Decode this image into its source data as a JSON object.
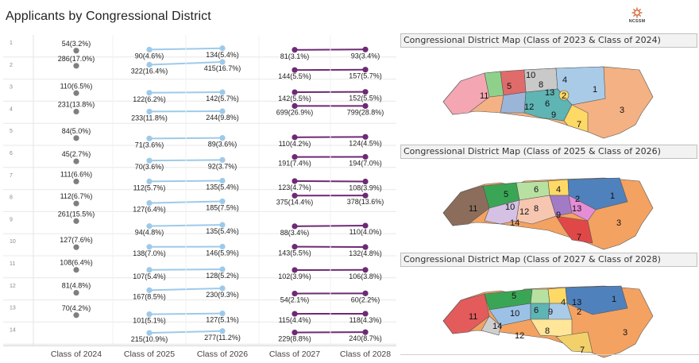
{
  "header": {
    "title": "Applicants by Congressional District",
    "logo_text": "NCSSM"
  },
  "chart_data": {
    "type": "line",
    "categories": [
      "Class of 2024",
      "Class of 2025",
      "Class of 2026",
      "Class of 2027",
      "Class of 2028"
    ],
    "rows": [
      "1",
      "2",
      "3",
      "4",
      "5",
      "6",
      "7",
      "8",
      "9",
      "10",
      "11",
      "12",
      "13",
      "14"
    ],
    "colors": {
      "c2024": "#7f7f7f",
      "c2526": "#9ecae9",
      "c2728": "#6e2a74"
    },
    "c2024": [
      {
        "v": 54,
        "label": "54(3.2%)"
      },
      {
        "v": 286,
        "label": "286(17.0%)"
      },
      {
        "v": 110,
        "label": "110(6.5%)"
      },
      {
        "v": 231,
        "label": "231(13.8%)"
      },
      {
        "v": 84,
        "label": "84(5.0%)"
      },
      {
        "v": 45,
        "label": "45(2.7%)"
      },
      {
        "v": 111,
        "label": "111(6.6%)"
      },
      {
        "v": 112,
        "label": "112(6.7%)"
      },
      {
        "v": 261,
        "label": "261(15.5%)"
      },
      {
        "v": 127,
        "label": "127(7.6%)"
      },
      {
        "v": 108,
        "label": "108(6.4%)"
      },
      {
        "v": 81,
        "label": "81(4.8%)"
      },
      {
        "v": 70,
        "label": "70(4.2%)"
      },
      {
        "v": null,
        "label": ""
      }
    ],
    "c2025": [
      {
        "v": 90,
        "label": "90(4.6%)"
      },
      {
        "v": 322,
        "label": "322(16.4%)"
      },
      {
        "v": 122,
        "label": "122(6.2%)"
      },
      {
        "v": 233,
        "label": "233(11.8%)"
      },
      {
        "v": 71,
        "label": "71(3.6%)"
      },
      {
        "v": 70,
        "label": "70(3.6%)"
      },
      {
        "v": 112,
        "label": "112(5.7%)"
      },
      {
        "v": 127,
        "label": "127(6.4%)"
      },
      {
        "v": 94,
        "label": "94(4.8%)"
      },
      {
        "v": 138,
        "label": "138(7.0%)"
      },
      {
        "v": 107,
        "label": "107(5.4%)"
      },
      {
        "v": 167,
        "label": "167(8.5%)"
      },
      {
        "v": 101,
        "label": "101(5.1%)"
      },
      {
        "v": 215,
        "label": "215(10.9%)"
      }
    ],
    "c2026": [
      {
        "v": 134,
        "label": "134(5.4%)"
      },
      {
        "v": 415,
        "label": "415(16.7%)"
      },
      {
        "v": 142,
        "label": "142(5.7%)"
      },
      {
        "v": 244,
        "label": "244(9.8%)"
      },
      {
        "v": 89,
        "label": "89(3.6%)"
      },
      {
        "v": 92,
        "label": "92(3.7%)"
      },
      {
        "v": 135,
        "label": "135(5.4%)"
      },
      {
        "v": 185,
        "label": "185(7.5%)"
      },
      {
        "v": 135,
        "label": "135(5.4%)"
      },
      {
        "v": 146,
        "label": "146(5.9%)"
      },
      {
        "v": 128,
        "label": "128(5.2%)"
      },
      {
        "v": 230,
        "label": "230(9.3%)"
      },
      {
        "v": 127,
        "label": "127(5.1%)"
      },
      {
        "v": 277,
        "label": "277(11.2%)"
      }
    ],
    "c2027": [
      {
        "v": 81,
        "label": "81(3.1%)"
      },
      {
        "v": 144,
        "label": "144(5.5%)"
      },
      {
        "v": 142,
        "label": "142(5.5%)"
      },
      {
        "v": 699,
        "label": "699(26.9%)"
      },
      {
        "v": 110,
        "label": "110(4.2%)"
      },
      {
        "v": 191,
        "label": "191(7.4%)"
      },
      {
        "v": 123,
        "label": "123(4.7%)"
      },
      {
        "v": 375,
        "label": "375(14.4%)"
      },
      {
        "v": 88,
        "label": "88(3.4%)"
      },
      {
        "v": 143,
        "label": "143(5.5%)"
      },
      {
        "v": 102,
        "label": "102(3.9%)"
      },
      {
        "v": 54,
        "label": "54(2.1%)"
      },
      {
        "v": 115,
        "label": "115(4.4%)"
      },
      {
        "v": 229,
        "label": "229(8.8%)"
      }
    ],
    "c2028": [
      {
        "v": 93,
        "label": "93(3.4%)"
      },
      {
        "v": 157,
        "label": "157(5.7%)"
      },
      {
        "v": 152,
        "label": "152(5.5%)"
      },
      {
        "v": 799,
        "label": "799(28.8%)"
      },
      {
        "v": 124,
        "label": "124(4.5%)"
      },
      {
        "v": 194,
        "label": "194(7.0%)"
      },
      {
        "v": 108,
        "label": "108(3.9%)"
      },
      {
        "v": 378,
        "label": "378(13.6%)"
      },
      {
        "v": 110,
        "label": "110(4.0%)"
      },
      {
        "v": 132,
        "label": "132(4.8%)"
      },
      {
        "v": 106,
        "label": "106(3.8%)"
      },
      {
        "v": 60,
        "label": "60(2.2%)"
      },
      {
        "v": 118,
        "label": "118(4.3%)"
      },
      {
        "v": 240,
        "label": "240(8.7%)"
      }
    ]
  },
  "maps": [
    {
      "title": "Congressional District Map (Class of 2023 & Class of 2024)",
      "labels": [
        "11",
        "5",
        "10",
        "8",
        "4",
        "13",
        "2",
        "1",
        "12",
        "6",
        "9",
        "7",
        "3"
      ]
    },
    {
      "title": "Congressional District Map (Class of 2025 & Class of 2026)",
      "labels": [
        "11",
        "5",
        "6",
        "4",
        "1",
        "10",
        "12",
        "8",
        "9",
        "13",
        "14",
        "3",
        "7",
        "2"
      ]
    },
    {
      "title": "Congressional District Map (Class of 2027 & Class of 2028)",
      "labels": [
        "11",
        "5",
        "10",
        "6",
        "9",
        "4",
        "13",
        "1",
        "14",
        "12",
        "8",
        "2",
        "3",
        "7"
      ]
    }
  ]
}
